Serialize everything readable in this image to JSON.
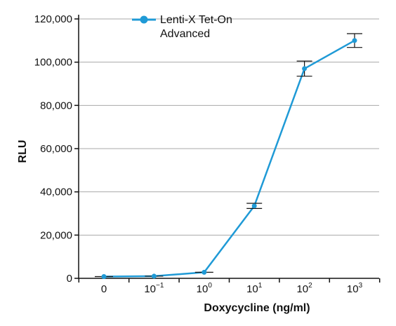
{
  "chart_data": {
    "type": "line",
    "title": "",
    "xlabel": "Doxycycline (ng/ml)",
    "ylabel": "RLU",
    "x_tick_labels": [
      {
        "base": "0",
        "exp": ""
      },
      {
        "base": "10",
        "exp": "−1"
      },
      {
        "base": "10",
        "exp": "0"
      },
      {
        "base": "10",
        "exp": "1"
      },
      {
        "base": "10",
        "exp": "2"
      },
      {
        "base": "10",
        "exp": "3"
      }
    ],
    "y_ticks": [
      0,
      20000,
      40000,
      60000,
      80000,
      100000,
      120000
    ],
    "y_tick_labels": [
      "0",
      "20,000",
      "40,000",
      "60,000",
      "80,000",
      "100,000",
      "120,000"
    ],
    "ylim": [
      0,
      120000
    ],
    "grid": true,
    "legend_position": "top-left",
    "series": [
      {
        "name_lines": [
          "Lenti-X Tet-On",
          "Advanced"
        ],
        "color": "#1f9ad6",
        "values": [
          800,
          1000,
          2800,
          33500,
          97000,
          110000
        ],
        "errors": [
          0,
          0,
          0,
          1200,
          3500,
          3200
        ]
      }
    ]
  }
}
